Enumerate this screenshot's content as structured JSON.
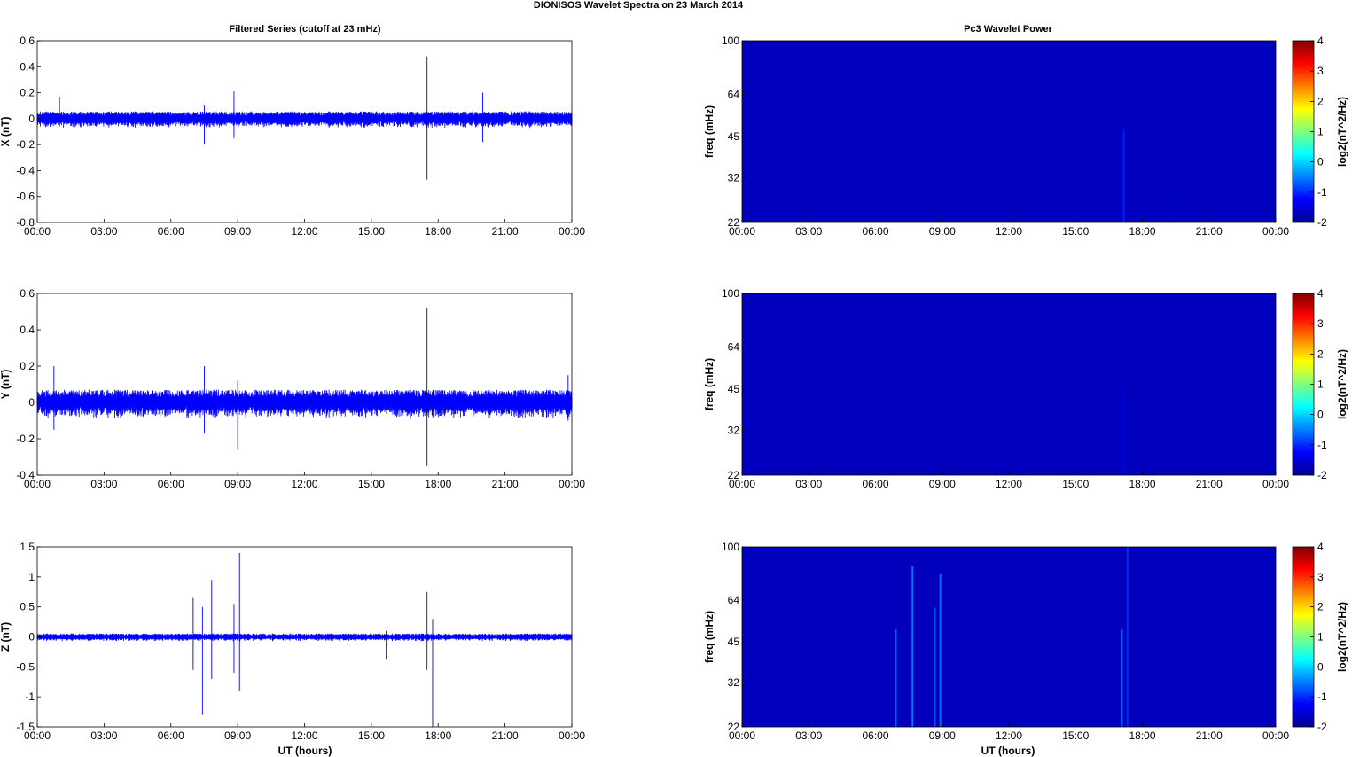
{
  "figure": {
    "title": "DIONISOS Wavelet Spectra on 23 March     2014",
    "left_column_title": "Filtered Series (cutoff at 23 mHz)",
    "right_column_title": "Pc3 Wavelet Power",
    "xlabel": "UT (hours)"
  },
  "chart_data": [
    {
      "type": "line",
      "component": "X",
      "ylabel": "X (nT)",
      "xlim": [
        "00:00",
        "24:00"
      ],
      "xticks": [
        "00:00",
        "03:00",
        "06:00",
        "09:00",
        "12:00",
        "15:00",
        "18:00",
        "21:00",
        "00:00"
      ],
      "ylim": [
        -0.8,
        0.6
      ],
      "yticks": [
        "0.6",
        "0.4",
        "0.2",
        "0",
        "-0.2",
        "-0.4",
        "-0.6",
        "-0.8"
      ],
      "series_color": "#0000ff",
      "noise_envelope_nT": 0.04,
      "events": [
        {
          "time": "01:00",
          "max": 0.17,
          "min": -0.06
        },
        {
          "time": "07:30",
          "max": 0.1,
          "min": -0.2
        },
        {
          "time": "08:50",
          "max": 0.21,
          "min": -0.15
        },
        {
          "time": "17:30",
          "max": 0.48,
          "min": -0.47
        },
        {
          "time": "20:00",
          "max": 0.2,
          "min": -0.18
        }
      ]
    },
    {
      "type": "line",
      "component": "Y",
      "ylabel": "Y (nT)",
      "xlim": [
        "00:00",
        "24:00"
      ],
      "xticks": [
        "00:00",
        "03:00",
        "06:00",
        "09:00",
        "12:00",
        "15:00",
        "18:00",
        "21:00",
        "00:00"
      ],
      "ylim": [
        -0.4,
        0.6
      ],
      "yticks": [
        "0.6",
        "0.4",
        "0.2",
        "0",
        "-0.2",
        "-0.4"
      ],
      "series_color": "#0000ff",
      "noise_envelope_nT": 0.05,
      "events": [
        {
          "time": "00:45",
          "max": 0.2,
          "min": -0.15
        },
        {
          "time": "07:30",
          "max": 0.2,
          "min": -0.17
        },
        {
          "time": "09:00",
          "max": 0.12,
          "min": -0.26
        },
        {
          "time": "17:30",
          "max": 0.52,
          "min": -0.35
        },
        {
          "time": "23:50",
          "max": 0.15,
          "min": -0.1
        }
      ]
    },
    {
      "type": "line",
      "component": "Z",
      "ylabel": "Z (nT)",
      "xlim": [
        "00:00",
        "24:00"
      ],
      "xticks": [
        "00:00",
        "03:00",
        "06:00",
        "09:00",
        "12:00",
        "15:00",
        "18:00",
        "21:00",
        "00:00"
      ],
      "ylim": [
        -1.5,
        1.5
      ],
      "yticks": [
        "1.5",
        "1",
        "0.5",
        "0",
        "-0.5",
        "-1",
        "-1.5"
      ],
      "series_color": "#0000ff",
      "noise_envelope_nT": 0.04,
      "events": [
        {
          "time": "07:00",
          "max": 0.65,
          "min": -0.55
        },
        {
          "time": "07:25",
          "max": 0.5,
          "min": -1.3
        },
        {
          "time": "07:50",
          "max": 0.95,
          "min": -0.7
        },
        {
          "time": "08:50",
          "max": 0.55,
          "min": -0.6
        },
        {
          "time": "09:05",
          "max": 1.4,
          "min": -0.9
        },
        {
          "time": "15:40",
          "max": 0.1,
          "min": -0.38
        },
        {
          "time": "17:30",
          "max": 0.75,
          "min": -0.55
        },
        {
          "time": "17:45",
          "max": 0.3,
          "min": -1.5
        }
      ]
    },
    {
      "type": "heatmap",
      "component": "X",
      "ylabel": "freq (mHz)",
      "yscale": "log",
      "ylim": [
        22,
        100
      ],
      "yticks": [
        "100",
        "64",
        "45",
        "32",
        "22"
      ],
      "xticks": [
        "00:00",
        "03:00",
        "06:00",
        "09:00",
        "12:00",
        "15:00",
        "18:00",
        "21:00",
        "00:00"
      ],
      "colorbar_label": "log2(nT^2/Hz)",
      "clim": [
        -2,
        4
      ],
      "colorbar_ticks": [
        "4",
        "3",
        "2",
        "1",
        "0",
        "-1",
        "-2"
      ],
      "background_level": -2,
      "features": [
        {
          "time": "17:10",
          "fmax_mHz": 48,
          "level": -1.3
        },
        {
          "time": "19:30",
          "fmax_mHz": 30,
          "level": -1.7
        }
      ]
    },
    {
      "type": "heatmap",
      "component": "Y",
      "ylabel": "freq (mHz)",
      "yscale": "log",
      "ylim": [
        22,
        100
      ],
      "yticks": [
        "100",
        "64",
        "45",
        "32",
        "22"
      ],
      "xticks": [
        "00:00",
        "03:00",
        "06:00",
        "09:00",
        "12:00",
        "15:00",
        "18:00",
        "21:00",
        "00:00"
      ],
      "colorbar_label": "log2(nT^2/Hz)",
      "clim": [
        -2,
        4
      ],
      "colorbar_ticks": [
        "4",
        "3",
        "2",
        "1",
        "0",
        "-1",
        "-2"
      ],
      "background_level": -2,
      "features": [
        {
          "time": "17:10",
          "fmax_mHz": 45,
          "level": -1.6
        }
      ]
    },
    {
      "type": "heatmap",
      "component": "Z",
      "ylabel": "freq (mHz)",
      "yscale": "log",
      "ylim": [
        22,
        100
      ],
      "yticks": [
        "100",
        "64",
        "45",
        "32",
        "22"
      ],
      "xticks": [
        "00:00",
        "03:00",
        "06:00",
        "09:00",
        "12:00",
        "15:00",
        "18:00",
        "21:00",
        "00:00"
      ],
      "colorbar_label": "log2(nT^2/Hz)",
      "clim": [
        -2,
        4
      ],
      "colorbar_ticks": [
        "4",
        "3",
        "2",
        "1",
        "0",
        "-1",
        "-2"
      ],
      "background_level": -2,
      "features": [
        {
          "time": "06:55",
          "fmax_mHz": 50,
          "level": -0.8
        },
        {
          "time": "07:40",
          "fmax_mHz": 85,
          "level": -0.6
        },
        {
          "time": "08:40",
          "fmax_mHz": 60,
          "level": -0.9
        },
        {
          "time": "08:55",
          "fmax_mHz": 80,
          "level": -0.7
        },
        {
          "time": "17:05",
          "fmax_mHz": 50,
          "level": -0.8
        },
        {
          "time": "17:20",
          "fmax_mHz": 100,
          "level": -1.2
        }
      ]
    }
  ]
}
